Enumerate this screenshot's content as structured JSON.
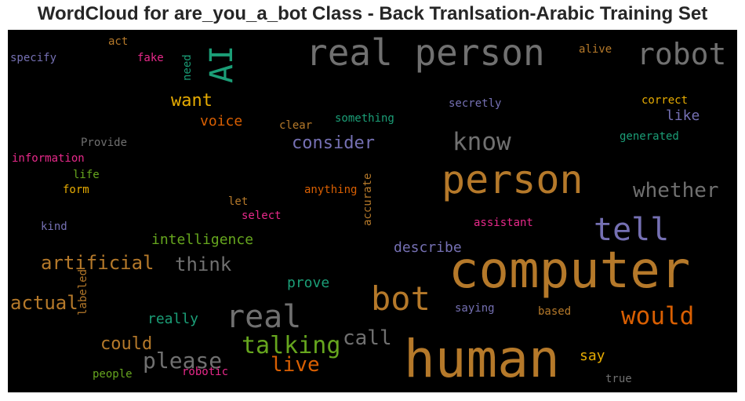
{
  "title": "WordCloud for are_you_a_bot Class - Back Tranlsation-Arabic Training Set",
  "words": {
    "human": {
      "text": "human",
      "color": "#b5792a"
    },
    "computer": {
      "text": "computer",
      "color": "#b5792a"
    },
    "person": {
      "text": "person",
      "color": "#b5792a"
    },
    "real_person": {
      "text": "real person",
      "color": "#707070"
    },
    "robot": {
      "text": "robot",
      "color": "#707070"
    },
    "tell": {
      "text": "tell",
      "color": "#7570b3"
    },
    "bot": {
      "text": "bot",
      "color": "#b5792a"
    },
    "real": {
      "text": "real",
      "color": "#707070"
    },
    "talking": {
      "text": "talking",
      "color": "#66a61e"
    },
    "would": {
      "text": "would",
      "color": "#d95f02"
    },
    "ai": {
      "text": "AI",
      "color": "#1b9e77"
    },
    "know": {
      "text": "know",
      "color": "#707070"
    },
    "whether": {
      "text": "whether",
      "color": "#707070"
    },
    "please": {
      "text": "please",
      "color": "#707070"
    },
    "live": {
      "text": "live",
      "color": "#d95f02"
    },
    "call": {
      "text": "call",
      "color": "#707070"
    },
    "artificial": {
      "text": "artificial",
      "color": "#b5792a"
    },
    "actual": {
      "text": "actual",
      "color": "#b5792a"
    },
    "could": {
      "text": "could",
      "color": "#b5792a"
    },
    "think": {
      "text": "think",
      "color": "#707070"
    },
    "consider": {
      "text": "consider",
      "color": "#7570b3"
    },
    "want": {
      "text": "want",
      "color": "#e6ab02"
    },
    "intelligence": {
      "text": "intelligence",
      "color": "#66a61e"
    },
    "voice": {
      "text": "voice",
      "color": "#d95f02"
    },
    "describe": {
      "text": "describe",
      "color": "#7570b3"
    },
    "prove": {
      "text": "prove",
      "color": "#1b9e77"
    },
    "really": {
      "text": "really",
      "color": "#1b9e77"
    },
    "say": {
      "text": "say",
      "color": "#e6ab02"
    },
    "like": {
      "text": "like",
      "color": "#7570b3"
    },
    "generated": {
      "text": "generated",
      "color": "#1b9e77"
    },
    "correct": {
      "text": "correct",
      "color": "#e6ab02"
    },
    "secretly": {
      "text": "secretly",
      "color": "#7570b3"
    },
    "something": {
      "text": "something",
      "color": "#1b9e77"
    },
    "clear": {
      "text": "clear",
      "color": "#b5792a"
    },
    "alive": {
      "text": "alive",
      "color": "#b5792a"
    },
    "act": {
      "text": "act",
      "color": "#b5792a"
    },
    "fake": {
      "text": "fake",
      "color": "#e7298a"
    },
    "specify": {
      "text": "specify",
      "color": "#7570b3"
    },
    "need": {
      "text": "need",
      "color": "#1b9e77"
    },
    "provide": {
      "text": "Provide",
      "color": "#707070"
    },
    "information": {
      "text": "information",
      "color": "#e7298a"
    },
    "life": {
      "text": "life",
      "color": "#66a61e"
    },
    "form": {
      "text": "form",
      "color": "#e6ab02"
    },
    "kind": {
      "text": "kind",
      "color": "#7570b3"
    },
    "let": {
      "text": "let",
      "color": "#b5792a"
    },
    "select": {
      "text": "select",
      "color": "#e7298a"
    },
    "anything": {
      "text": "anything",
      "color": "#d95f02"
    },
    "accurate": {
      "text": "accurate",
      "color": "#b5792a"
    },
    "assistant": {
      "text": "assistant",
      "color": "#e7298a"
    },
    "saying": {
      "text": "saying",
      "color": "#7570b3"
    },
    "based": {
      "text": "based",
      "color": "#b5792a"
    },
    "true": {
      "text": "true",
      "color": "#707070"
    },
    "people": {
      "text": "people",
      "color": "#66a61e"
    },
    "robotic": {
      "text": "robotic",
      "color": "#e7298a"
    },
    "labeled": {
      "text": "labeled",
      "color": "#b5792a"
    }
  }
}
